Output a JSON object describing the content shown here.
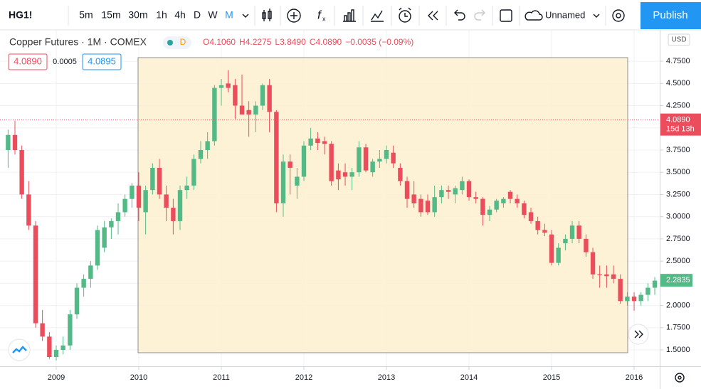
{
  "toolbar": {
    "symbol": "HG1!",
    "intervals": [
      "5m",
      "15m",
      "30m",
      "1h",
      "4h",
      "D",
      "W",
      "M"
    ],
    "layout_name": "Unnamed",
    "publish": "Publish"
  },
  "legend": {
    "title": "Copper Futures · 1M · COMEX",
    "badge": "D",
    "ohlc": [
      "O4.1060",
      "H4.2275",
      "L3.8490",
      "C4.0890",
      "−0.0035 (−0.09%)"
    ],
    "bid": "4.0890",
    "spread": "0.0005",
    "ask": "4.0895"
  },
  "chart_data": {
    "type": "candlestick",
    "currency": "USD",
    "up_color": "#53b987",
    "down_color": "#eb4d5c",
    "grid": true,
    "x": [
      2008.417,
      2008.5,
      2008.583,
      2008.667,
      2008.75,
      2008.833,
      2008.917,
      2009,
      2009.083,
      2009.167,
      2009.25,
      2009.333,
      2009.417,
      2009.5,
      2009.583,
      2009.667,
      2009.75,
      2009.833,
      2009.917,
      2010,
      2010.083,
      2010.167,
      2010.25,
      2010.333,
      2010.417,
      2010.5,
      2010.583,
      2010.667,
      2010.75,
      2010.833,
      2010.917,
      2011,
      2011.083,
      2011.167,
      2011.25,
      2011.333,
      2011.417,
      2011.5,
      2011.583,
      2011.667,
      2011.75,
      2011.833,
      2011.917,
      2012,
      2012.083,
      2012.167,
      2012.25,
      2012.333,
      2012.417,
      2012.5,
      2012.583,
      2012.667,
      2012.75,
      2012.833,
      2012.917,
      2013,
      2013.083,
      2013.167,
      2013.25,
      2013.333,
      2013.417,
      2013.5,
      2013.583,
      2013.667,
      2013.75,
      2013.833,
      2013.917,
      2014,
      2014.083,
      2014.167,
      2014.25,
      2014.333,
      2014.417,
      2014.5,
      2014.583,
      2014.667,
      2014.75,
      2014.833,
      2014.917,
      2015,
      2015.083,
      2015.167,
      2015.25,
      2015.333,
      2015.417,
      2015.5,
      2015.583,
      2015.667,
      2015.75,
      2015.833,
      2015.917,
      2016,
      2016.083,
      2016.167,
      2016.25
    ],
    "open": [
      3.75,
      3.92,
      3.75,
      3.25,
      2.9,
      1.8,
      1.65,
      1.42,
      1.5,
      1.55,
      1.9,
      2.2,
      2.3,
      2.45,
      2.65,
      2.88,
      2.95,
      3.05,
      3.2,
      3.35,
      3.05,
      3.3,
      3.55,
      3.25,
      3.1,
      2.95,
      3.3,
      3.35,
      3.65,
      3.75,
      3.85,
      4.45,
      4.5,
      4.48,
      4.25,
      4.2,
      4.15,
      4.25,
      4.48,
      4.18,
      3.15,
      3.62,
      3.35,
      3.45,
      3.8,
      3.88,
      3.85,
      3.82,
      3.52,
      3.5,
      3.45,
      3.5,
      3.78,
      3.5,
      3.62,
      3.65,
      3.72,
      3.55,
      3.4,
      3.25,
      3.2,
      3.18,
      3.05,
      3.22,
      3.3,
      3.25,
      3.3,
      3.4,
      3.22,
      3.2,
      3.02,
      3.08,
      3.15,
      3.28,
      3.2,
      3.15,
      3.05,
      2.95,
      2.85,
      2.8,
      2.48,
      2.7,
      2.75,
      2.9,
      2.75,
      2.6,
      2.35,
      2.35,
      2.35,
      2.3,
      2.05,
      2.1,
      2.05,
      2.12,
      2.2
    ],
    "high": [
      3.98,
      4.08,
      3.8,
      3.4,
      2.95,
      1.95,
      1.7,
      1.55,
      1.65,
      1.95,
      2.25,
      2.35,
      2.5,
      2.9,
      2.95,
      2.98,
      3.15,
      3.25,
      3.38,
      3.5,
      3.35,
      3.6,
      3.65,
      3.35,
      3.2,
      3.35,
      3.45,
      3.7,
      3.85,
      3.95,
      4.48,
      4.55,
      4.65,
      4.55,
      4.6,
      4.3,
      4.3,
      4.5,
      4.55,
      4.2,
      3.7,
      3.7,
      3.55,
      3.85,
      4.0,
      3.95,
      3.9,
      3.85,
      3.6,
      3.6,
      3.55,
      3.85,
      3.82,
      3.65,
      3.75,
      3.8,
      3.8,
      3.6,
      3.45,
      3.4,
      3.25,
      3.25,
      3.35,
      3.35,
      3.35,
      3.35,
      3.45,
      3.42,
      3.28,
      3.22,
      3.12,
      3.2,
      3.22,
      3.3,
      3.25,
      3.18,
      3.1,
      3.0,
      2.92,
      2.85,
      2.7,
      2.8,
      2.95,
      2.95,
      2.8,
      2.65,
      2.45,
      2.45,
      2.45,
      2.35,
      2.15,
      2.15,
      2.15,
      2.25,
      2.32
    ],
    "low": [
      3.55,
      3.7,
      3.2,
      2.85,
      1.75,
      1.6,
      1.4,
      1.38,
      1.45,
      1.5,
      1.85,
      2.1,
      2.2,
      2.4,
      2.6,
      2.75,
      2.8,
      3.0,
      3.1,
      2.95,
      2.8,
      3.25,
      3.2,
      2.95,
      2.8,
      2.85,
      3.2,
      3.3,
      3.6,
      3.65,
      3.8,
      4.25,
      4.4,
      4.1,
      4.15,
      3.9,
      3.95,
      4.2,
      3.95,
      3.05,
      3.0,
      3.25,
      3.2,
      3.4,
      3.75,
      3.75,
      3.7,
      3.35,
      3.3,
      3.35,
      3.3,
      3.45,
      3.5,
      3.45,
      3.55,
      3.6,
      3.55,
      3.35,
      3.1,
      3.1,
      3.0,
      3.02,
      3.0,
      3.15,
      3.2,
      3.15,
      3.25,
      3.18,
      3.15,
      2.9,
      2.95,
      3.05,
      3.1,
      3.15,
      3.1,
      2.98,
      2.92,
      2.8,
      2.78,
      2.45,
      2.45,
      2.62,
      2.7,
      2.7,
      2.55,
      2.3,
      2.2,
      2.2,
      2.25,
      2.02,
      2.0,
      1.94,
      2.0,
      2.05,
      2.12
    ],
    "close": [
      3.92,
      3.75,
      3.25,
      2.9,
      1.8,
      1.65,
      1.42,
      1.5,
      1.55,
      1.9,
      2.2,
      2.3,
      2.45,
      2.85,
      2.88,
      2.95,
      3.05,
      3.2,
      3.35,
      3.1,
      3.3,
      3.55,
      3.25,
      3.1,
      2.95,
      3.3,
      3.35,
      3.65,
      3.75,
      3.85,
      4.45,
      4.48,
      4.45,
      4.25,
      4.15,
      4.15,
      4.25,
      4.48,
      4.18,
      3.15,
      3.62,
      3.55,
      3.45,
      3.8,
      3.88,
      3.83,
      3.82,
      3.4,
      3.42,
      3.45,
      3.5,
      3.78,
      3.52,
      3.62,
      3.65,
      3.75,
      3.6,
      3.4,
      3.2,
      3.15,
      3.05,
      3.05,
      3.22,
      3.3,
      3.28,
      3.32,
      3.4,
      3.22,
      3.2,
      3.02,
      3.08,
      3.18,
      3.2,
      3.2,
      3.15,
      3.02,
      2.95,
      2.85,
      2.82,
      2.48,
      2.65,
      2.75,
      2.9,
      2.75,
      2.6,
      2.35,
      2.34,
      2.33,
      2.3,
      2.05,
      2.1,
      2.05,
      2.12,
      2.2,
      2.28
    ],
    "xlim": [
      2008.319,
      2016.31
    ],
    "xticks": [
      2009,
      2010,
      2011,
      2012,
      2013,
      2014,
      2015,
      2016
    ],
    "ylim": [
      1.316,
      5.103
    ],
    "yticks": [
      {
        "value": 1.5,
        "label": "1.5000"
      },
      {
        "value": 1.75,
        "label": "1.7500"
      },
      {
        "value": 2,
        "label": "2.0000"
      },
      {
        "value": 2.25,
        "label": "2.2500"
      },
      {
        "value": 2.5,
        "label": "2.5000"
      },
      {
        "value": 2.75,
        "label": "2.7500"
      },
      {
        "value": 3,
        "label": "3.0000"
      },
      {
        "value": 3.25,
        "label": "3.2500"
      },
      {
        "value": 3.5,
        "label": "3.5000"
      },
      {
        "value": 3.75,
        "label": "3.7500"
      },
      {
        "value": 4,
        "label": "4.0000"
      },
      {
        "value": 4.25,
        "label": "4.2500"
      },
      {
        "value": 4.5,
        "label": "4.5000"
      },
      {
        "value": 4.75,
        "label": "4.7500"
      }
    ],
    "price_tags": [
      {
        "value": 4.089,
        "label": "4.0890"
      },
      {
        "value": 2.2835,
        "label": "2.2835"
      }
    ],
    "countdown": "15d 13h"
  }
}
